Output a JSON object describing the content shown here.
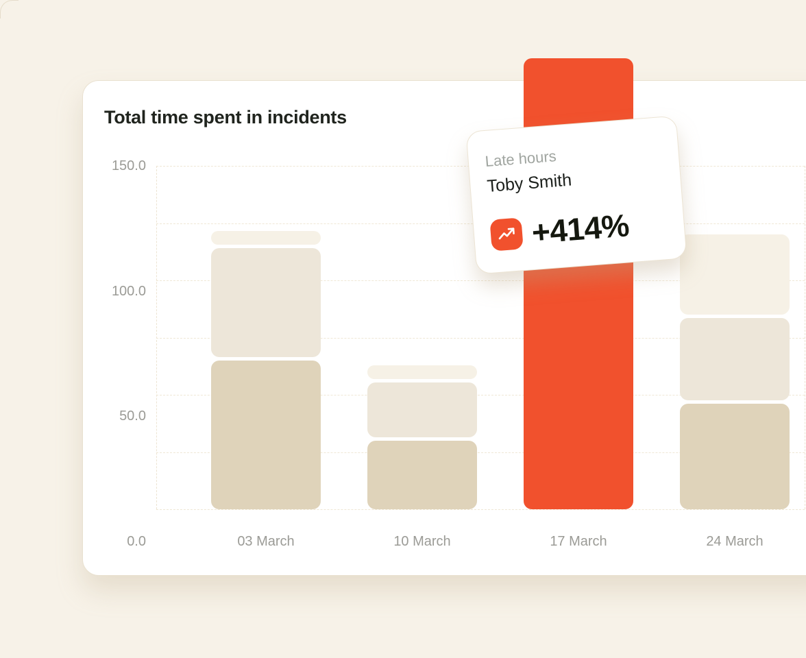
{
  "page": {
    "background_color": "#F7F2E8"
  },
  "card": {
    "title": "Total time spent in incidents"
  },
  "tooltip": {
    "label": "Late hours",
    "name": "Toby Smith",
    "delta": "+414%",
    "icon": "trending-up-icon",
    "icon_color": "#F1512D"
  },
  "chart_data": {
    "type": "bar",
    "stacked": true,
    "title": "Total time spent in incidents",
    "categories": [
      "03 March",
      "10 March",
      "17 March",
      "24 March"
    ],
    "series": [
      {
        "name": "segment-bottom",
        "color": "#DFD3BA",
        "values": [
          65,
          30,
          0,
          46
        ]
      },
      {
        "name": "segment-middle",
        "color": "#EDE6D9",
        "values": [
          47.5,
          24,
          0,
          36
        ]
      },
      {
        "name": "segment-top",
        "color": "#F6F1E6",
        "values": [
          6,
          6,
          0,
          35
        ]
      }
    ],
    "highlight": {
      "category": "17 March",
      "value": 197,
      "color": "#F1512D",
      "note": "bar extends beyond chart top"
    },
    "ylim": [
      0,
      150
    ],
    "y_ticks": [
      "150.0",
      "100.0",
      "50.0",
      "0.0"
    ],
    "x_ticks": [
      "03 March",
      "10 March",
      "17 March",
      "24 March"
    ],
    "grid": "horizontal-dashed",
    "legend": "none"
  }
}
